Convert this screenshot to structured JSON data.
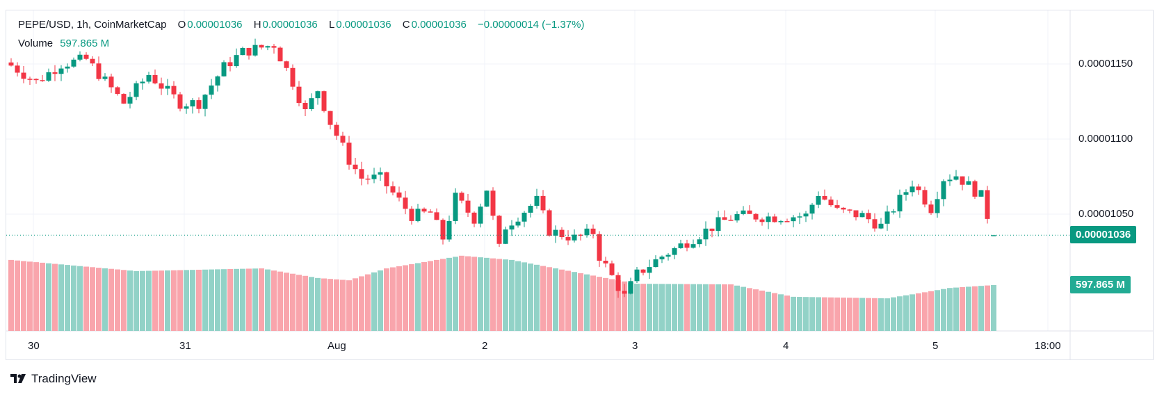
{
  "legend": {
    "symbol": "PEPE/USD, 1h, CoinMarketCap",
    "o_label": "O",
    "o": "0.00001036",
    "h_label": "H",
    "h": "0.00001036",
    "l_label": "L",
    "l": "0.00001036",
    "c_label": "C",
    "c": "0.00001036",
    "change": "−0.00000014 (−1.37%)",
    "volume_label": "Volume",
    "volume_value": "597.865 M"
  },
  "price_axis": [
    "0.00001150",
    "0.00001100",
    "0.00001050"
  ],
  "current_price_badge": "0.00001036",
  "volume_badge": "597.865 M",
  "time_axis": [
    "30",
    "31",
    "Aug",
    "2",
    "3",
    "4",
    "5",
    "18:00"
  ],
  "branding": "TradingView",
  "colors": {
    "up": "#089981",
    "down": "#F23645",
    "up_vol": "#92d2c7",
    "down_vol": "#f9a5ac"
  },
  "chart_data": {
    "type": "candlestick",
    "interval": "1h",
    "price_unit": "1e-8 USD",
    "ylim": [
      1000,
      1170
    ],
    "yticks": [
      1150,
      1100,
      1050
    ],
    "last_price": 1036,
    "candle_count": 158,
    "approx_close_path": [
      [
        0,
        1149
      ],
      [
        4,
        1138
      ],
      [
        8,
        1150
      ],
      [
        12,
        1153
      ],
      [
        18,
        1124
      ],
      [
        22,
        1143
      ],
      [
        27,
        1124
      ],
      [
        30,
        1124
      ],
      [
        34,
        1148
      ],
      [
        37,
        1158
      ],
      [
        42,
        1163
      ],
      [
        45,
        1138
      ],
      [
        47,
        1118
      ],
      [
        49,
        1133
      ],
      [
        51,
        1111
      ],
      [
        54,
        1086
      ],
      [
        56,
        1074
      ],
      [
        59,
        1074
      ],
      [
        64,
        1049
      ],
      [
        67,
        1051
      ],
      [
        69,
        1034
      ],
      [
        71,
        1061
      ],
      [
        74,
        1047
      ],
      [
        76,
        1067
      ],
      [
        78,
        1027
      ],
      [
        79,
        1042
      ],
      [
        84,
        1059
      ],
      [
        86,
        1039
      ],
      [
        90,
        1034
      ],
      [
        93,
        1038
      ],
      [
        94,
        1022
      ],
      [
        98,
        995
      ],
      [
        100,
        1010
      ],
      [
        104,
        1022
      ],
      [
        109,
        1034
      ],
      [
        113,
        1044
      ],
      [
        116,
        1049
      ],
      [
        122,
        1048
      ],
      [
        127,
        1049
      ],
      [
        129,
        1064
      ],
      [
        132,
        1052
      ],
      [
        136,
        1049
      ],
      [
        139,
        1042
      ],
      [
        141,
        1054
      ],
      [
        144,
        1071
      ],
      [
        147,
        1054
      ],
      [
        149,
        1074
      ],
      [
        151,
        1076
      ],
      [
        155,
        1062
      ],
      [
        156,
        1049
      ],
      [
        157,
        1036
      ]
    ],
    "volume_unit": "M",
    "approx_volume_path": [
      [
        0,
        925
      ],
      [
        20,
        780
      ],
      [
        40,
        815
      ],
      [
        49,
        690
      ],
      [
        54,
        660
      ],
      [
        60,
        815
      ],
      [
        72,
        980
      ],
      [
        80,
        925
      ],
      [
        95,
        690
      ],
      [
        100,
        615
      ],
      [
        115,
        607
      ],
      [
        125,
        445
      ],
      [
        140,
        425
      ],
      [
        145,
        490
      ],
      [
        150,
        560
      ],
      [
        157,
        597.865
      ]
    ],
    "xticks": [
      "30",
      "31",
      "Aug",
      "2",
      "3",
      "4",
      "5",
      "18:00"
    ]
  }
}
